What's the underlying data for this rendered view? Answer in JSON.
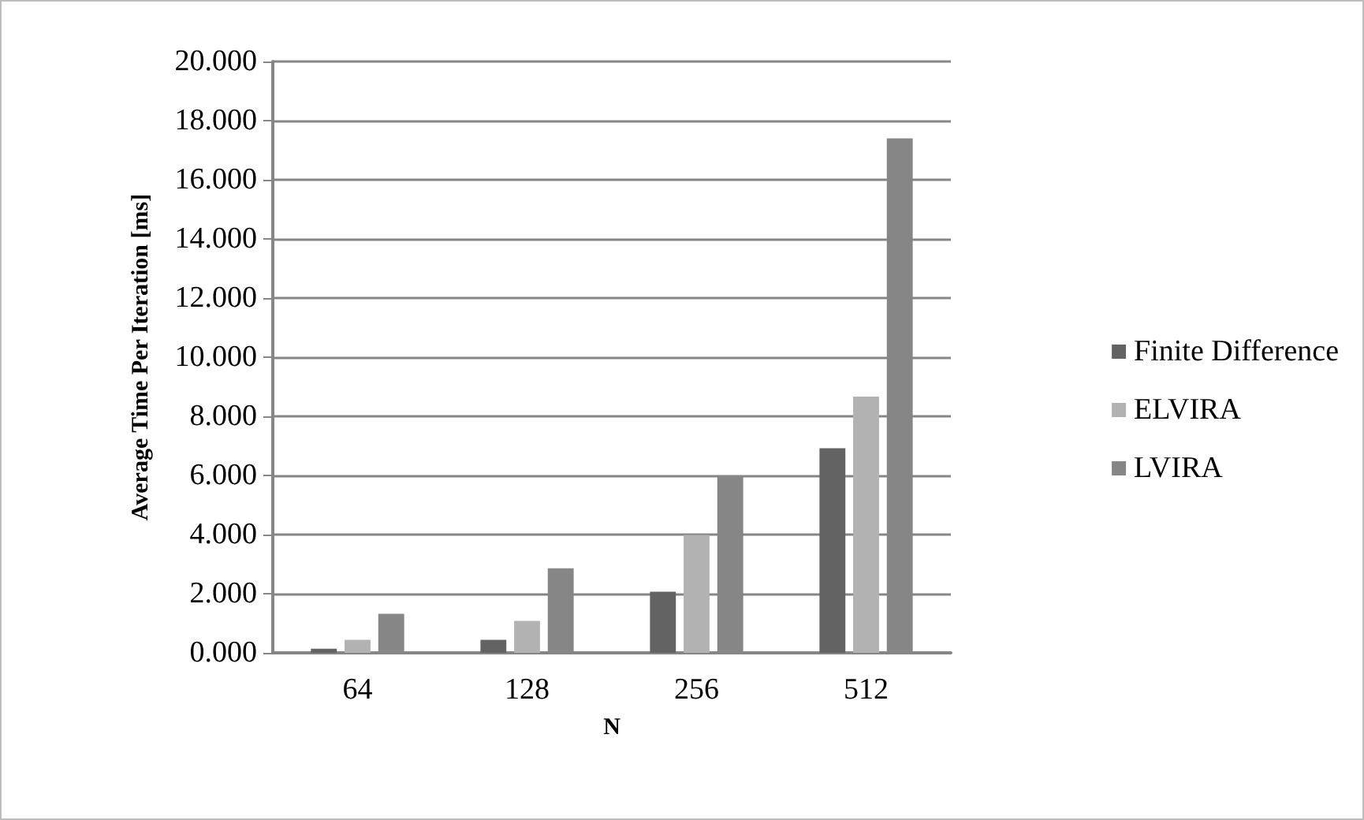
{
  "chart_data": {
    "type": "bar",
    "xlabel": "N",
    "ylabel": "Average Time Per Iteration [ms]",
    "categories": [
      "64",
      "128",
      "256",
      "512"
    ],
    "series": [
      {
        "name": "Finite Difference",
        "color": "#636363",
        "values": [
          0.14,
          0.44,
          2.07,
          6.92
        ]
      },
      {
        "name": "ELVIRA",
        "color": "#b2b2b2",
        "values": [
          0.44,
          1.08,
          3.99,
          8.67
        ]
      },
      {
        "name": "LVIRA",
        "color": "#868686",
        "values": [
          1.32,
          2.86,
          6.0,
          17.4
        ]
      }
    ],
    "ylim": [
      0,
      20
    ],
    "yticks": [
      {
        "value": 0,
        "label": "0.000"
      },
      {
        "value": 2,
        "label": "2.000"
      },
      {
        "value": 4,
        "label": "4.000"
      },
      {
        "value": 6,
        "label": "6.000"
      },
      {
        "value": 8,
        "label": "8.000"
      },
      {
        "value": 10,
        "label": "10.000"
      },
      {
        "value": 12,
        "label": "12.000"
      },
      {
        "value": 14,
        "label": "14.000"
      },
      {
        "value": 16,
        "label": "16.000"
      },
      {
        "value": 18,
        "label": "18.000"
      },
      {
        "value": 20,
        "label": "20.000"
      }
    ],
    "grid": "y",
    "legend": "right"
  }
}
